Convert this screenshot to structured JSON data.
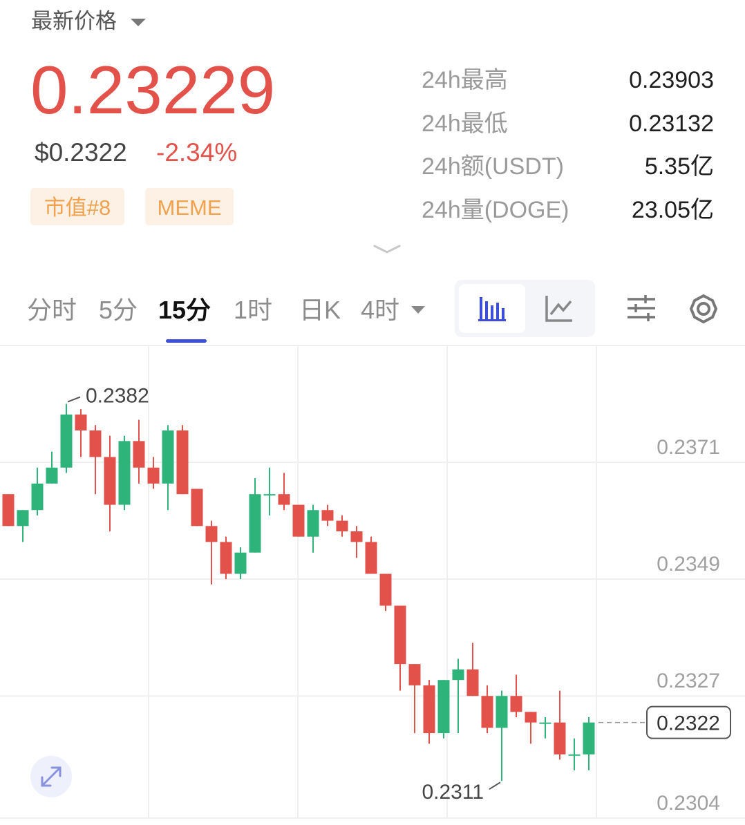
{
  "header": {
    "label": "最新价格",
    "price": "0.23229",
    "usd_price": "$0.2322",
    "change": "-2.34%",
    "tags": [
      "市值#8",
      "MEME"
    ]
  },
  "stats": [
    {
      "label": "24h最高",
      "value": "0.23903"
    },
    {
      "label": "24h最低",
      "value": "0.23132"
    },
    {
      "label": "24h额(USDT)",
      "value": "5.35亿"
    },
    {
      "label": "24h量(DOGE)",
      "value": "23.05亿"
    }
  ],
  "tabs": [
    "分时",
    "5分",
    "15分",
    "1时",
    "日K",
    "4时"
  ],
  "chart_data": {
    "type": "candlestick",
    "open": [
      0.2365,
      0.2359,
      0.2362,
      0.2367,
      0.237,
      0.238,
      0.2377,
      0.2372,
      0.2363,
      0.2375,
      0.237,
      0.2367,
      0.2377,
      0.2366,
      0.2359,
      0.2356,
      0.235,
      0.2354,
      0.2365,
      0.2365,
      0.2363,
      0.2357,
      0.2362,
      0.236,
      0.2358,
      0.2356,
      0.235,
      0.2344,
      0.2333,
      0.2329,
      0.232,
      0.233,
      0.2332,
      0.2327,
      0.2321,
      0.2327,
      0.2324,
      0.2322,
      0.2322,
      0.2316,
      0.2316
    ],
    "high": [
      0.2365,
      0.2362,
      0.237,
      0.2373,
      0.2382,
      0.2381,
      0.2378,
      0.2376,
      0.2376,
      0.2379,
      0.2372,
      0.2378,
      0.2378,
      0.2366,
      0.236,
      0.2357,
      0.2355,
      0.2368,
      0.237,
      0.2369,
      0.2363,
      0.2363,
      0.2363,
      0.2361,
      0.2359,
      0.2357,
      0.235,
      0.2344,
      0.2333,
      0.233,
      0.233,
      0.2334,
      0.2337,
      0.2329,
      0.2328,
      0.2331,
      0.2324,
      0.2323,
      0.2328,
      0.2319,
      0.2323
    ],
    "low": [
      0.2359,
      0.2356,
      0.2361,
      0.2367,
      0.2369,
      0.2372,
      0.2365,
      0.2358,
      0.2362,
      0.2367,
      0.2366,
      0.2362,
      0.2365,
      0.2359,
      0.2348,
      0.2349,
      0.2349,
      0.2354,
      0.2361,
      0.2362,
      0.2357,
      0.2354,
      0.2359,
      0.2357,
      0.2353,
      0.235,
      0.2343,
      0.2328,
      0.232,
      0.2318,
      0.2319,
      0.232,
      0.2327,
      0.232,
      0.2311,
      0.2323,
      0.2318,
      0.2319,
      0.2315,
      0.2313,
      0.2313
    ],
    "close": [
      0.2359,
      0.2362,
      0.2367,
      0.237,
      0.238,
      0.2377,
      0.2372,
      0.2363,
      0.2375,
      0.237,
      0.2367,
      0.2377,
      0.2365,
      0.2359,
      0.2356,
      0.235,
      0.2354,
      0.2365,
      0.2365,
      0.2363,
      0.2357,
      0.2362,
      0.236,
      0.2358,
      0.2356,
      0.235,
      0.2344,
      0.2333,
      0.2329,
      0.232,
      0.233,
      0.2332,
      0.2327,
      0.2321,
      0.2327,
      0.2324,
      0.2322,
      0.2322,
      0.2316,
      0.2316,
      0.2322
    ],
    "ylim": [
      0.2304,
      0.2393
    ],
    "yticks": [
      0.2304,
      0.2327,
      0.2349,
      0.2371
    ],
    "grid": true,
    "up_color": "#2eb47b",
    "down_color": "#e2514a",
    "max_marker": 0.2382,
    "min_marker": 0.2311,
    "last_price": 0.2322
  }
}
